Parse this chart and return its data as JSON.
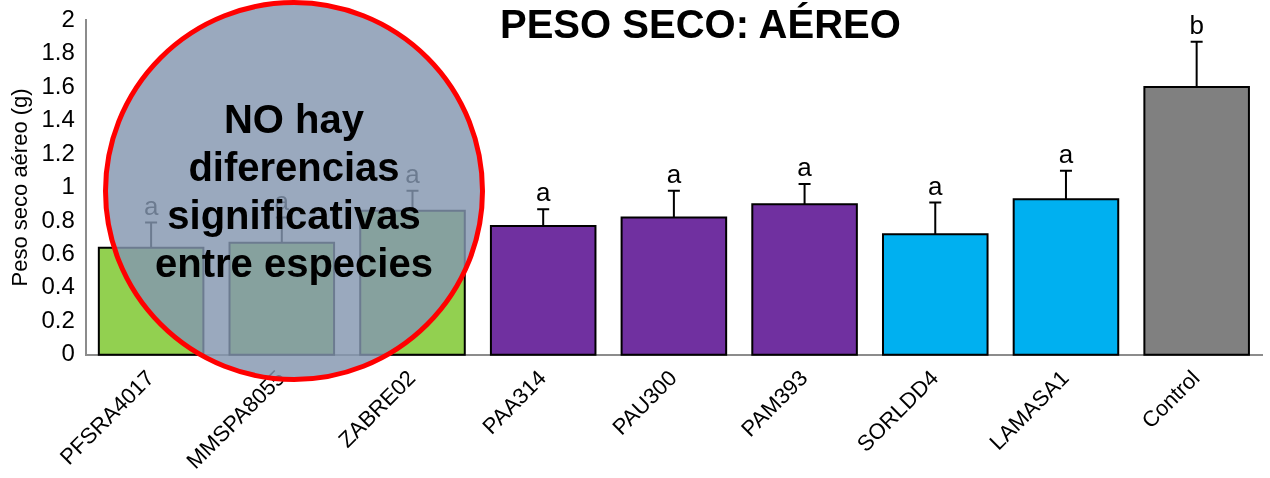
{
  "chart_data": {
    "type": "bar",
    "title": "PESO SECO: AÉREO",
    "ylabel": "Peso seco aéreo (g)",
    "categories": [
      "PFSRA4017",
      "MMSPA8055",
      "ZABRE02",
      "PAA314",
      "PAU300",
      "PAM393",
      "SORLDD4",
      "LAMASA1",
      "Control"
    ],
    "values": [
      0.64,
      0.67,
      0.86,
      0.77,
      0.82,
      0.9,
      0.72,
      0.93,
      1.6
    ],
    "colors": [
      "#92d050",
      "#92d050",
      "#92d050",
      "#7030a0",
      "#7030a0",
      "#7030a0",
      "#00b0f0",
      "#00b0f0",
      "#808080"
    ],
    "errors": [
      [
        0.64,
        0.79
      ],
      [
        0.67,
        0.82
      ],
      [
        0.86,
        0.98
      ],
      [
        0.77,
        0.87
      ],
      [
        0.82,
        0.98
      ],
      [
        0.9,
        1.02
      ],
      [
        0.72,
        0.91
      ],
      [
        0.93,
        1.1
      ],
      [
        1.6,
        1.87
      ]
    ],
    "ylim": [
      0,
      2
    ],
    "yticks": [
      0,
      0.2,
      0.4,
      0.6,
      0.8,
      1,
      1.2,
      1.4,
      1.6,
      1.8,
      2
    ],
    "grid": false,
    "legend": false,
    "value_labels": [
      "a",
      "a",
      "a",
      "a",
      "a",
      "a",
      "a",
      "a",
      "b"
    ],
    "annotations": [
      "NO hay diferencias significativas entre especies"
    ]
  }
}
